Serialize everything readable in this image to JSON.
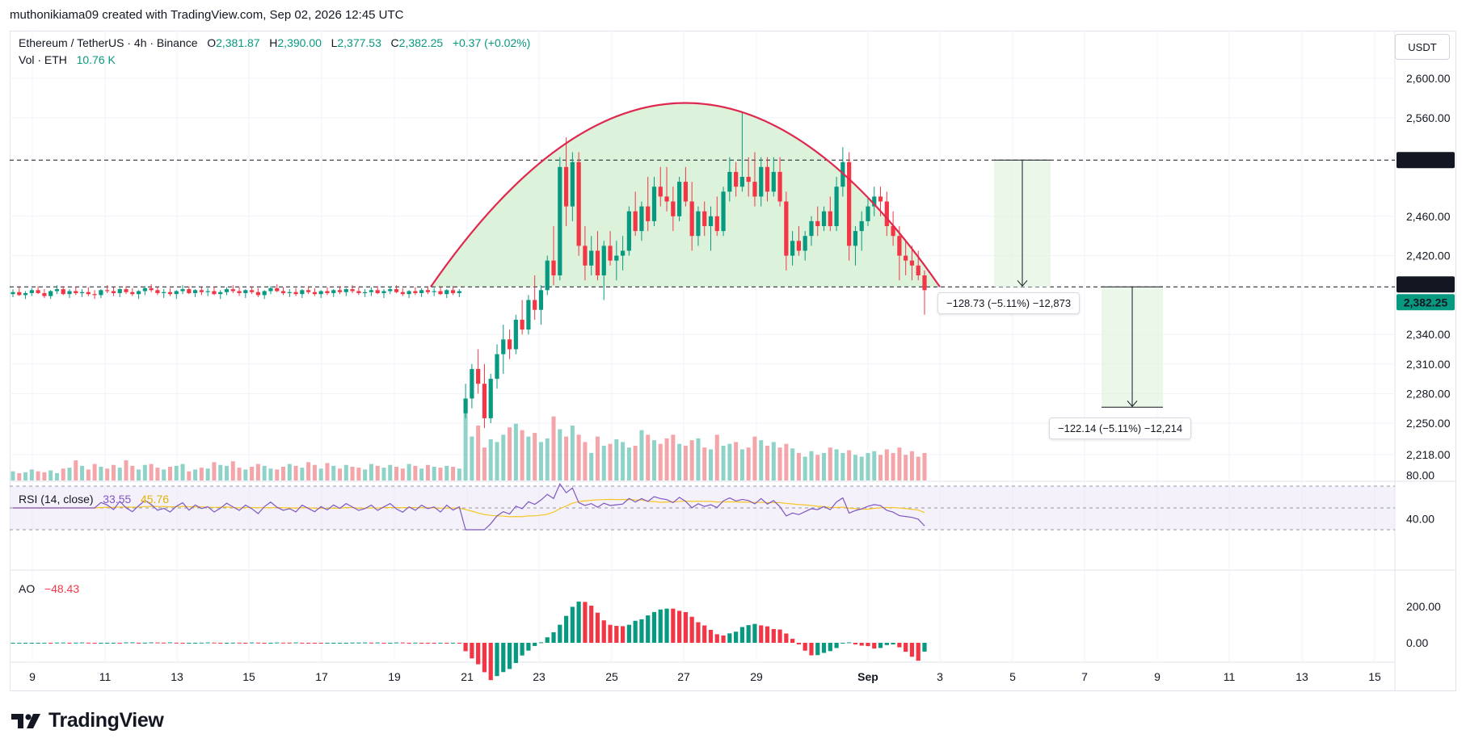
{
  "header": {
    "credit": "muthonikiama09 created with TradingView.com, Sep 02, 2026 12:45 UTC"
  },
  "symbol": {
    "title": "Ethereum / TetherUS · 4h · Binance",
    "open_label": "O",
    "open": "2,381.87",
    "high_label": "H",
    "high": "2,390.00",
    "low_label": "L",
    "low": "2,377.53",
    "close_label": "C",
    "close": "2,382.25",
    "change": "+0.37 (+0.02%)"
  },
  "volume_legend": {
    "label": "Vol · ETH",
    "value": "10.76 K"
  },
  "currency": "USDT",
  "rsi_legend": {
    "label": "RSI (14, close)",
    "rsi": "33.55",
    "ma": "45.76"
  },
  "ao_legend": {
    "label": "AO",
    "value": "−48.43"
  },
  "price_tags": {
    "level": "2,517.02",
    "level2": "2,388.29",
    "last": "2,382.25"
  },
  "measures": [
    {
      "text": "−128.73 (−5.11%) −12,873"
    },
    {
      "text": "−122.14 (−5.11%) −12,214"
    }
  ],
  "logo": {
    "text": "TradingView"
  },
  "colors": {
    "up": "#089981",
    "down": "#f23645",
    "arc": "#e0284f",
    "dome_fill": "#d6f0d4",
    "rsi_line": "#7e57c2",
    "rsi_ma": "#f7c524",
    "vol_up": "#8fd2c7",
    "vol_down": "#f4a5a9"
  },
  "chart_data": [
    {
      "type": "candlestick",
      "title": "Ethereum / TetherUS · 4h · Binance",
      "x_ticks": [
        "9",
        "11",
        "13",
        "15",
        "17",
        "19",
        "21",
        "23",
        "25",
        "27",
        "29",
        "Sep",
        "3",
        "5",
        "7",
        "9",
        "11",
        "13",
        "15"
      ],
      "y_ticks": [
        "2,218.00",
        "2,250.00",
        "2,280.00",
        "2,310.00",
        "2,340.00",
        "2,420.00",
        "2,460.00",
        "2,560.00",
        "2,600.00"
      ],
      "ylim": [
        2200,
        2625
      ],
      "overlays": {
        "horizontal_levels": [
          2517.02,
          2388.29
        ],
        "rounding_top_arc": {
          "from_x": "Aug 20",
          "to_x": "Sep 3",
          "peak": 2575
        },
        "projections": [
          {
            "from": 2517.02,
            "to": 2388.29,
            "change": "−128.73 (−5.11%)"
          },
          {
            "from": 2388.29,
            "to": 2266.15,
            "change": "−122.14 (−5.11%)"
          }
        ]
      },
      "candles_ohlc": [
        [
          2381,
          2386,
          2378,
          2383
        ],
        [
          2383,
          2388,
          2379,
          2380
        ],
        [
          2380,
          2384,
          2376,
          2382
        ],
        [
          2382,
          2387,
          2379,
          2385
        ],
        [
          2385,
          2389,
          2381,
          2382
        ],
        [
          2382,
          2386,
          2377,
          2379
        ],
        [
          2379,
          2385,
          2376,
          2384
        ],
        [
          2384,
          2390,
          2381,
          2386
        ],
        [
          2386,
          2389,
          2380,
          2381
        ],
        [
          2381,
          2386,
          2377,
          2384
        ],
        [
          2384,
          2388,
          2380,
          2382
        ],
        [
          2382,
          2386,
          2378,
          2383
        ],
        [
          2383,
          2388,
          2379,
          2381
        ],
        [
          2381,
          2385,
          2376,
          2380
        ],
        [
          2380,
          2386,
          2377,
          2385
        ],
        [
          2385,
          2390,
          2382,
          2384
        ],
        [
          2384,
          2388,
          2379,
          2382
        ],
        [
          2382,
          2387,
          2378,
          2386
        ],
        [
          2386,
          2389,
          2381,
          2383
        ],
        [
          2383,
          2387,
          2379,
          2381
        ],
        [
          2381,
          2385,
          2376,
          2384
        ],
        [
          2384,
          2389,
          2380,
          2387
        ],
        [
          2387,
          2391,
          2383,
          2385
        ],
        [
          2385,
          2388,
          2380,
          2382
        ],
        [
          2382,
          2386,
          2377,
          2383
        ],
        [
          2383,
          2387,
          2379,
          2381
        ],
        [
          2381,
          2385,
          2376,
          2384
        ],
        [
          2384,
          2390,
          2381,
          2386
        ],
        [
          2386,
          2389,
          2381,
          2382
        ],
        [
          2382,
          2386,
          2378,
          2385
        ],
        [
          2385,
          2388,
          2380,
          2383
        ],
        [
          2383,
          2387,
          2379,
          2384
        ],
        [
          2384,
          2388,
          2380,
          2381
        ],
        [
          2381,
          2385,
          2376,
          2383
        ],
        [
          2383,
          2388,
          2380,
          2386
        ],
        [
          2386,
          2390,
          2382,
          2384
        ],
        [
          2384,
          2388,
          2379,
          2382
        ],
        [
          2382,
          2386,
          2377,
          2385
        ],
        [
          2385,
          2389,
          2381,
          2383
        ],
        [
          2383,
          2387,
          2378,
          2380
        ],
        [
          2380,
          2385,
          2376,
          2384
        ],
        [
          2384,
          2389,
          2381,
          2387
        ],
        [
          2387,
          2391,
          2383,
          2384
        ],
        [
          2384,
          2388,
          2380,
          2382
        ],
        [
          2382,
          2386,
          2378,
          2383
        ],
        [
          2383,
          2387,
          2379,
          2381
        ],
        [
          2381,
          2386,
          2377,
          2385
        ],
        [
          2385,
          2389,
          2381,
          2383
        ],
        [
          2383,
          2387,
          2379,
          2381
        ],
        [
          2381,
          2385,
          2377,
          2384
        ],
        [
          2384,
          2388,
          2380,
          2382
        ],
        [
          2382,
          2386,
          2378,
          2385
        ],
        [
          2385,
          2389,
          2381,
          2383
        ],
        [
          2383,
          2387,
          2379,
          2386
        ],
        [
          2386,
          2390,
          2382,
          2384
        ],
        [
          2384,
          2388,
          2380,
          2382
        ],
        [
          2382,
          2386,
          2378,
          2383
        ],
        [
          2383,
          2388,
          2379,
          2385
        ],
        [
          2385,
          2389,
          2381,
          2382
        ],
        [
          2382,
          2386,
          2377,
          2384
        ],
        [
          2384,
          2389,
          2381,
          2386
        ],
        [
          2386,
          2390,
          2382,
          2383
        ],
        [
          2383,
          2387,
          2379,
          2381
        ],
        [
          2381,
          2385,
          2377,
          2384
        ],
        [
          2384,
          2388,
          2380,
          2382
        ],
        [
          2382,
          2387,
          2378,
          2385
        ],
        [
          2385,
          2389,
          2381,
          2383
        ],
        [
          2383,
          2387,
          2379,
          2384
        ],
        [
          2384,
          2388,
          2380,
          2381
        ],
        [
          2381,
          2386,
          2377,
          2385
        ],
        [
          2385,
          2389,
          2380,
          2382
        ],
        [
          2382,
          2386,
          2378,
          2384
        ],
        [
          2260,
          2290,
          2255,
          2275
        ],
        [
          2275,
          2310,
          2265,
          2305
        ],
        [
          2305,
          2325,
          2280,
          2290
        ],
        [
          2290,
          2310,
          2245,
          2255
        ],
        [
          2255,
          2300,
          2250,
          2295
        ],
        [
          2295,
          2330,
          2285,
          2320
        ],
        [
          2320,
          2350,
          2300,
          2335
        ],
        [
          2335,
          2345,
          2315,
          2325
        ],
        [
          2325,
          2360,
          2320,
          2355
        ],
        [
          2355,
          2375,
          2340,
          2345
        ],
        [
          2345,
          2380,
          2340,
          2375
        ],
        [
          2375,
          2400,
          2355,
          2365
        ],
        [
          2365,
          2390,
          2350,
          2385
        ],
        [
          2385,
          2420,
          2380,
          2415
        ],
        [
          2415,
          2450,
          2390,
          2400
        ],
        [
          2400,
          2520,
          2395,
          2510
        ],
        [
          2510,
          2540,
          2450,
          2470
        ],
        [
          2470,
          2525,
          2455,
          2515
        ],
        [
          2515,
          2525,
          2420,
          2430
        ],
        [
          2430,
          2450,
          2395,
          2410
        ],
        [
          2410,
          2440,
          2400,
          2425
        ],
        [
          2425,
          2445,
          2395,
          2400
        ],
        [
          2400,
          2435,
          2375,
          2430
        ],
        [
          2430,
          2445,
          2410,
          2415
        ],
        [
          2415,
          2435,
          2395,
          2420
        ],
        [
          2420,
          2440,
          2405,
          2425
        ],
        [
          2425,
          2470,
          2420,
          2465
        ],
        [
          2465,
          2485,
          2440,
          2445
        ],
        [
          2445,
          2475,
          2435,
          2470
        ],
        [
          2470,
          2500,
          2445,
          2455
        ],
        [
          2455,
          2500,
          2450,
          2490
        ],
        [
          2490,
          2510,
          2470,
          2480
        ],
        [
          2480,
          2510,
          2465,
          2475
        ],
        [
          2475,
          2490,
          2445,
          2460
        ],
        [
          2460,
          2500,
          2455,
          2495
        ],
        [
          2495,
          2510,
          2470,
          2475
        ],
        [
          2475,
          2495,
          2425,
          2440
        ],
        [
          2440,
          2470,
          2430,
          2465
        ],
        [
          2465,
          2475,
          2440,
          2450
        ],
        [
          2450,
          2470,
          2425,
          2460
        ],
        [
          2460,
          2480,
          2440,
          2445
        ],
        [
          2445,
          2490,
          2440,
          2485
        ],
        [
          2485,
          2520,
          2475,
          2505
        ],
        [
          2505,
          2515,
          2480,
          2490
        ],
        [
          2490,
          2565,
          2485,
          2500
        ],
        [
          2500,
          2520,
          2480,
          2495
        ],
        [
          2495,
          2525,
          2470,
          2480
        ],
        [
          2480,
          2520,
          2470,
          2510
        ],
        [
          2510,
          2520,
          2475,
          2485
        ],
        [
          2485,
          2520,
          2480,
          2505
        ],
        [
          2505,
          2520,
          2470,
          2475
        ],
        [
          2475,
          2485,
          2405,
          2420
        ],
        [
          2420,
          2445,
          2410,
          2435
        ],
        [
          2435,
          2450,
          2420,
          2425
        ],
        [
          2425,
          2445,
          2415,
          2440
        ],
        [
          2440,
          2460,
          2430,
          2455
        ],
        [
          2455,
          2470,
          2440,
          2450
        ],
        [
          2450,
          2470,
          2445,
          2465
        ],
        [
          2465,
          2480,
          2445,
          2450
        ],
        [
          2450,
          2500,
          2445,
          2490
        ],
        [
          2490,
          2530,
          2480,
          2515
        ],
        [
          2515,
          2525,
          2415,
          2430
        ],
        [
          2430,
          2450,
          2410,
          2445
        ],
        [
          2445,
          2465,
          2425,
          2455
        ],
        [
          2455,
          2480,
          2450,
          2470
        ],
        [
          2470,
          2490,
          2460,
          2480
        ],
        [
          2480,
          2490,
          2460,
          2475
        ],
        [
          2475,
          2485,
          2440,
          2450
        ],
        [
          2450,
          2465,
          2430,
          2440
        ],
        [
          2440,
          2450,
          2395,
          2420
        ],
        [
          2420,
          2435,
          2400,
          2415
        ],
        [
          2415,
          2430,
          2395,
          2410
        ],
        [
          2410,
          2425,
          2395,
          2400
        ],
        [
          2400,
          2405,
          2360,
          2385
        ]
      ],
      "volume": [
        10,
        8,
        9,
        12,
        10,
        9,
        11,
        8,
        13,
        14,
        22,
        16,
        12,
        18,
        15,
        13,
        17,
        14,
        22,
        16,
        12,
        17,
        18,
        14,
        12,
        15,
        16,
        18,
        10,
        12,
        14,
        13,
        20,
        17,
        16,
        21,
        14,
        12,
        15,
        18,
        16,
        13,
        12,
        15,
        18,
        16,
        14,
        20,
        17,
        13,
        19,
        16,
        13,
        17,
        15,
        14,
        12,
        18,
        16,
        14,
        17,
        15,
        13,
        18,
        16,
        13,
        17,
        15,
        14,
        16,
        15,
        13,
        75,
        48,
        60,
        36,
        45,
        42,
        50,
        58,
        62,
        55,
        48,
        52,
        42,
        46,
        70,
        56,
        48,
        60,
        50,
        42,
        30,
        48,
        38,
        40,
        45,
        42,
        36,
        38,
        55,
        50,
        44,
        40,
        46,
        50,
        40,
        38,
        44,
        46,
        36,
        34,
        50,
        38,
        40,
        42,
        34,
        36,
        48,
        44,
        38,
        42,
        36,
        40,
        35,
        30,
        26,
        32,
        28,
        30,
        36,
        34,
        30,
        33,
        28,
        26,
        30,
        32,
        28,
        34,
        30,
        36,
        28,
        32,
        26,
        30,
        34,
        10
      ],
      "rsi": {
        "levels": [
          70,
          50,
          30
        ],
        "last": 33.55,
        "ma_last": 45.76,
        "y_ticks": [
          "80.00",
          "40.00"
        ]
      },
      "ao": {
        "last": -48.43,
        "y_ticks": [
          "200.00",
          "0.00"
        ]
      }
    }
  ]
}
